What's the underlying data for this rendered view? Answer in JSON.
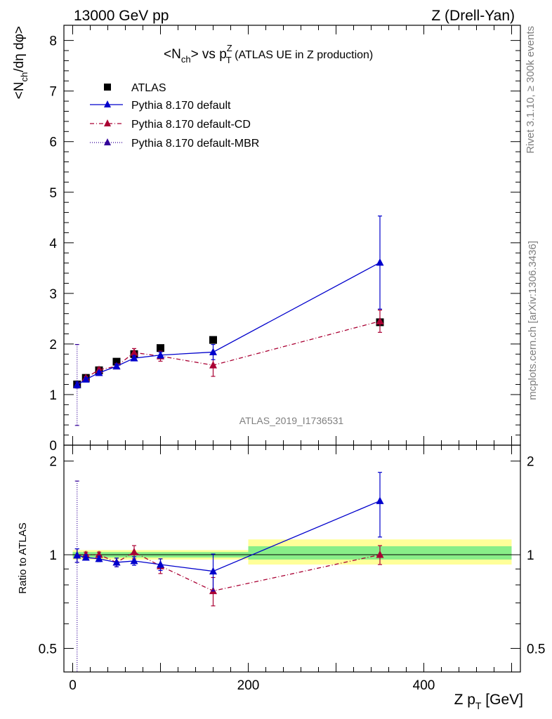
{
  "header": {
    "left": "13000 GeV pp",
    "right": "Z (Drell-Yan)"
  },
  "side_labels": {
    "rivet": "Rivet 3.1.10, ≥ 300k events",
    "mcplots": "mcplots.cern.ch [arXiv:1306.3436]"
  },
  "chart_data": [
    {
      "type": "scatter",
      "title": "<Nch> vs pTZ (ATLAS UE in Z production)",
      "title_parts": {
        "a": "<N",
        "a_sub": "ch",
        "b": "> vs p",
        "b_sup": "Z",
        "b_sub": "T",
        "c": " (ATLAS UE in Z production)"
      },
      "ylabel": "<Nch/dη dφ>",
      "ylabel_parts": {
        "a": "<N",
        "a_sub": "ch",
        "b": "/dη dφ>"
      },
      "xlim": [
        -10,
        510
      ],
      "ylim": [
        0,
        8.3
      ],
      "y_ticks": [
        "0",
        "1",
        "2",
        "3",
        "4",
        "5",
        "6",
        "7",
        "8"
      ],
      "watermark": "ATLAS_2019_I1736531",
      "legend_position": "top-left",
      "legend": [
        "ATLAS",
        "Pythia 8.170 default",
        "Pythia 8.170 default-CD",
        "Pythia 8.170 default-MBR"
      ],
      "series": [
        {
          "name": "ATLAS",
          "color": "#000000",
          "marker": "square",
          "x": [
            5,
            15,
            30,
            50,
            70,
            100,
            160,
            350
          ],
          "y": [
            1.2,
            1.33,
            1.48,
            1.65,
            1.8,
            1.92,
            2.08,
            2.43
          ]
        },
        {
          "name": "Pythia 8.170 default",
          "color": "#0000cc",
          "marker": "triangle",
          "line": "solid",
          "x": [
            5,
            15,
            30,
            50,
            70,
            100,
            160,
            350
          ],
          "y": [
            1.19,
            1.3,
            1.43,
            1.56,
            1.72,
            1.78,
            1.84,
            3.61
          ],
          "err": [
            0.06,
            0.03,
            0.03,
            0.04,
            0.05,
            0.06,
            0.15,
            0.92
          ]
        },
        {
          "name": "Pythia 8.170 default-CD",
          "color": "#aa0033",
          "marker": "triangle",
          "line": "dashdot",
          "x": [
            5,
            15,
            30,
            50,
            70,
            100,
            160,
            350
          ],
          "y": [
            1.19,
            1.33,
            1.49,
            1.56,
            1.83,
            1.76,
            1.58,
            2.45
          ],
          "err": [
            0.06,
            0.03,
            0.04,
            0.05,
            0.08,
            0.1,
            0.22,
            0.22
          ]
        },
        {
          "name": "Pythia 8.170 default-MBR",
          "color": "#330099",
          "marker": "triangle",
          "line": "dotted",
          "x": [
            5
          ],
          "y": [
            1.19
          ],
          "err_lo": [
            0.8
          ],
          "err_hi": [
            0.8
          ]
        }
      ]
    },
    {
      "type": "scatter",
      "ylabel": "Ratio to ATLAS",
      "xlabel": "Z pT [GeV]",
      "xlabel_parts": {
        "a": "Z p",
        "a_sub": "T",
        "b": " [GeV]"
      },
      "xlim": [
        -10,
        510
      ],
      "ylim": [
        0.42,
        2.25
      ],
      "y_ticks": [
        "0.5",
        "1",
        "2"
      ],
      "x_ticks": [
        "0",
        "200",
        "400"
      ],
      "x_tick_values": [
        0,
        200,
        400
      ],
      "ref_line": 1,
      "bands": [
        {
          "x0": 0,
          "x1": 200,
          "yellow": [
            0.965,
            1.035
          ],
          "green": [
            0.98,
            1.02
          ]
        },
        {
          "x0": 200,
          "x1": 500,
          "yellow": [
            0.93,
            1.12
          ],
          "green": [
            0.965,
            1.065
          ]
        }
      ],
      "series": [
        {
          "name": "Pythia 8.170 default",
          "color": "#0000cc",
          "line": "solid",
          "x": [
            5,
            15,
            30,
            50,
            70,
            100,
            160,
            350
          ],
          "y": [
            0.995,
            0.98,
            0.97,
            0.945,
            0.955,
            0.93,
            0.885,
            1.49
          ],
          "err": [
            0.05,
            0.02,
            0.02,
            0.03,
            0.03,
            0.04,
            0.12,
            0.35
          ]
        },
        {
          "name": "Pythia 8.170 default-CD",
          "color": "#aa0033",
          "line": "dashdot",
          "x": [
            5,
            15,
            30,
            50,
            70,
            100,
            160,
            350
          ],
          "y": [
            0.995,
            1.0,
            1.0,
            0.945,
            1.02,
            0.92,
            0.765,
            1.0
          ],
          "err": [
            0.05,
            0.02,
            0.02,
            0.03,
            0.05,
            0.05,
            0.08,
            0.07
          ]
        },
        {
          "name": "Pythia 8.170 default-MBR",
          "color": "#330099",
          "line": "dotted",
          "x": [
            5
          ],
          "y": [
            0.995
          ],
          "err_lo": [
            0.6
          ],
          "err_hi": [
            0.73
          ]
        }
      ]
    }
  ]
}
